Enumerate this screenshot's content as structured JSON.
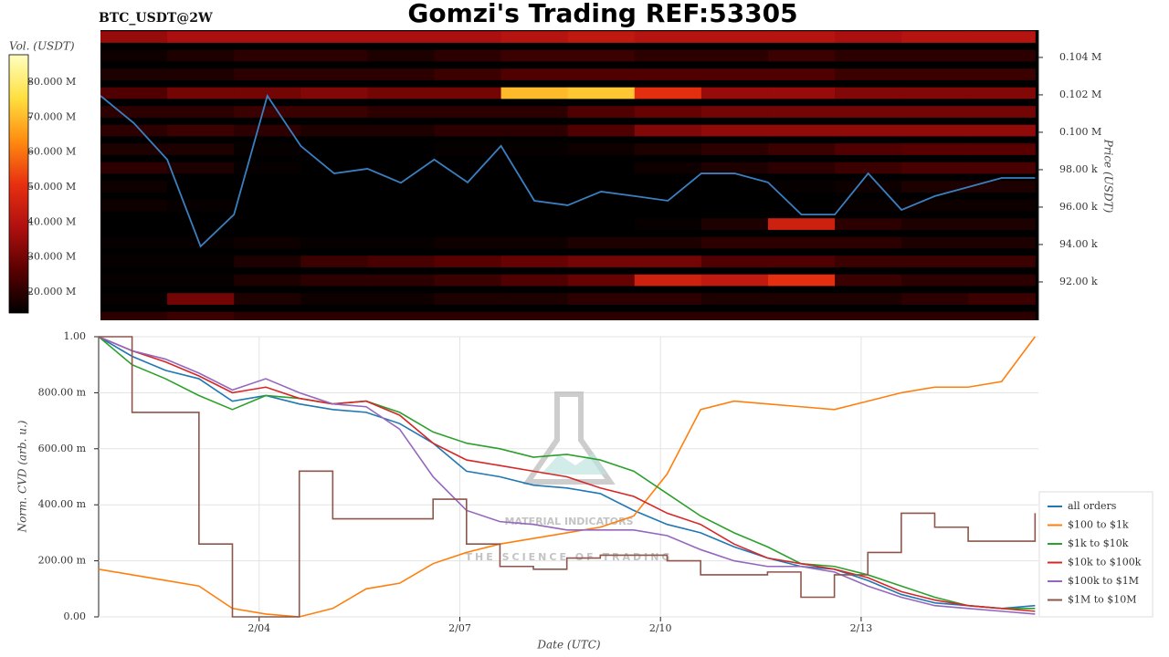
{
  "chart_data": [
    {
      "type": "heatmap",
      "title": "Gomzi's Trading REF:53305",
      "subtitle": "BTC_USDT@2W",
      "ylabel": "Price (USDT)",
      "xlim": [
        1.6,
        15.65
      ],
      "ylim": [
        89950,
        105460
      ],
      "yticks": [
        {
          "value": 92000,
          "label": "92.00 k"
        },
        {
          "value": 94000,
          "label": "94.00 k"
        },
        {
          "value": 96000,
          "label": "96.00 k"
        },
        {
          "value": 98000,
          "label": "98.00 k"
        },
        {
          "value": 100000,
          "label": "0.100 M"
        },
        {
          "value": 102000,
          "label": "0.102 M"
        },
        {
          "value": 104000,
          "label": "0.104 M"
        }
      ],
      "x": [
        1.6,
        2.1,
        2.6,
        3.1,
        3.6,
        4.1,
        4.6,
        5.1,
        5.6,
        6.1,
        6.6,
        7.1,
        7.6,
        8.1,
        8.6,
        9.1,
        9.6,
        10.1,
        10.6,
        11.1,
        11.6,
        12.1,
        12.6,
        13.1,
        13.6,
        14.1,
        14.6,
        15.1,
        15.6
      ],
      "series": [
        {
          "color": "#3a7fc0",
          "values": [
            101950,
            100490,
            98540,
            93900,
            95600,
            101950,
            99270,
            97800,
            98050,
            97300,
            98540,
            97320,
            99270,
            96340,
            96100,
            96830,
            96590,
            96340,
            97800,
            97800,
            97320,
            95600,
            95600,
            97800,
            95850,
            96590,
            97070,
            97560,
            97560
          ]
        }
      ],
      "heatmap": {
        "x_edges": [
          1.6,
          2.6,
          3.6,
          4.6,
          5.6,
          6.6,
          7.6,
          8.6,
          9.6,
          10.6,
          11.6,
          12.6,
          13.6,
          14.6,
          15.6
        ],
        "y": [
          105000,
          104000,
          103000,
          102000,
          101000,
          100000,
          99000,
          98000,
          97000,
          96000,
          95000,
          94000,
          93000,
          92000,
          91000,
          90000
        ],
        "values": [
          [
            35000000.0,
            38000000.0,
            38000000.0,
            38000000.0,
            38000000.0,
            38000000.0,
            40000000.0,
            42000000.0,
            40000000.0,
            40000000.0,
            40000000.0,
            38000000.0,
            40000000.0,
            40000000.0
          ],
          [
            16000000.0,
            18000000.0,
            20000000.0,
            20000000.0,
            18000000.0,
            20000000.0,
            22000000.0,
            22000000.0,
            20000000.0,
            20000000.0,
            22000000.0,
            20000000.0,
            20000000.0,
            20000000.0
          ],
          [
            18000000.0,
            18000000.0,
            20000000.0,
            20000000.0,
            20000000.0,
            22000000.0,
            25000000.0,
            25000000.0,
            25000000.0,
            25000000.0,
            25000000.0,
            22000000.0,
            22000000.0,
            22000000.0
          ],
          [
            25000000.0,
            30000000.0,
            30000000.0,
            32000000.0,
            30000000.0,
            30000000.0,
            70000000.0,
            72000000.0,
            50000000.0,
            35000000.0,
            35000000.0,
            32000000.0,
            32000000.0,
            32000000.0
          ],
          [
            20000000.0,
            20000000.0,
            22000000.0,
            22000000.0,
            20000000.0,
            20000000.0,
            20000000.0,
            25000000.0,
            28000000.0,
            30000000.0,
            30000000.0,
            30000000.0,
            30000000.0,
            30000000.0
          ],
          [
            20000000.0,
            22000000.0,
            20000000.0,
            18000000.0,
            18000000.0,
            20000000.0,
            20000000.0,
            25000000.0,
            32000000.0,
            34000000.0,
            34000000.0,
            34000000.0,
            34000000.0,
            34000000.0
          ],
          [
            18000000.0,
            18000000.0,
            15000000.0,
            12000000.0,
            14000000.0,
            15000000.0,
            15000000.0,
            16000000.0,
            18000000.0,
            20000000.0,
            22000000.0,
            25000000.0,
            26000000.0,
            26000000.0
          ],
          [
            20000000.0,
            18000000.0,
            15000000.0,
            12000000.0,
            12000000.0,
            14000000.0,
            14000000.0,
            14000000.0,
            16000000.0,
            18000000.0,
            20000000.0,
            22000000.0,
            24000000.0,
            24000000.0
          ],
          [
            16000000.0,
            14000000.0,
            13000000.0,
            13000000.0,
            13000000.0,
            13000000.0,
            13000000.0,
            13000000.0,
            13000000.0,
            14000000.0,
            15000000.0,
            16000000.0,
            18000000.0,
            18000000.0
          ],
          [
            16000000.0,
            15000000.0,
            14000000.0,
            13000000.0,
            13000000.0,
            13000000.0,
            13000000.0,
            13000000.0,
            13000000.0,
            13000000.0,
            14000000.0,
            15000000.0,
            16000000.0,
            16000000.0
          ],
          [
            14000000.0,
            14000000.0,
            14000000.0,
            13000000.0,
            13000000.0,
            13000000.0,
            14000000.0,
            14000000.0,
            15000000.0,
            18000000.0,
            45000000.0,
            20000000.0,
            18000000.0,
            18000000.0
          ],
          [
            15000000.0,
            15000000.0,
            16000000.0,
            15000000.0,
            15000000.0,
            16000000.0,
            16000000.0,
            18000000.0,
            18000000.0,
            20000000.0,
            20000000.0,
            20000000.0,
            18000000.0,
            18000000.0
          ],
          [
            15000000.0,
            15000000.0,
            18000000.0,
            22000000.0,
            24000000.0,
            26000000.0,
            28000000.0,
            30000000.0,
            30000000.0,
            25000000.0,
            25000000.0,
            22000000.0,
            22000000.0,
            22000000.0
          ],
          [
            15000000.0,
            15000000.0,
            18000000.0,
            20000000.0,
            20000000.0,
            22000000.0,
            25000000.0,
            28000000.0,
            45000000.0,
            42000000.0,
            50000000.0,
            22000000.0,
            20000000.0,
            20000000.0
          ],
          [
            15000000.0,
            30000000.0,
            18000000.0,
            16000000.0,
            16000000.0,
            18000000.0,
            18000000.0,
            20000000.0,
            20000000.0,
            18000000.0,
            18000000.0,
            18000000.0,
            20000000.0,
            22000000.0
          ],
          [
            20000000.0,
            22000000.0,
            20000000.0,
            20000000.0,
            20000000.0,
            20000000.0,
            20000000.0,
            20000000.0,
            20000000.0,
            20000000.0,
            20000000.0,
            20000000.0,
            20000000.0,
            20000000.0
          ]
        ]
      },
      "colorbar": {
        "label": "Vol. (USDT)",
        "lim": [
          14000000,
          87800000
        ],
        "ticks": [
          {
            "value": 20000000,
            "label": "20.000 M"
          },
          {
            "value": 30000000,
            "label": "30.000 M"
          },
          {
            "value": 40000000,
            "label": "40.000 M"
          },
          {
            "value": 50000000,
            "label": "50.000 M"
          },
          {
            "value": 60000000,
            "label": "60.000 M"
          },
          {
            "value": 70000000,
            "label": "70.000 M"
          },
          {
            "value": 80000000,
            "label": "80.000 M"
          }
        ],
        "colors": [
          "#000000",
          "#5a0000",
          "#b01010",
          "#e83010",
          "#ff8c10",
          "#ffe040",
          "#ffffc0"
        ]
      }
    },
    {
      "type": "line",
      "xlabel": "Date (UTC)",
      "ylabel": "Norm. CVD (arb. u.)",
      "grid": true,
      "legend": "lower right",
      "annotations": [
        "MATERIAL INDICATORS",
        "THE SCIENCE OF TRADING"
      ],
      "xlim": [
        1.6,
        15.65
      ],
      "ylim": [
        0,
        1
      ],
      "xticks": [
        {
          "value": 4,
          "label": "2/04"
        },
        {
          "value": 7,
          "label": "2/07"
        },
        {
          "value": 10,
          "label": "2/10"
        },
        {
          "value": 13,
          "label": "2/13"
        }
      ],
      "yticks": [
        {
          "value": 0,
          "label": "0.00"
        },
        {
          "value": 0.2,
          "label": "200.00 m"
        },
        {
          "value": 0.4,
          "label": "400.00 m"
        },
        {
          "value": 0.6,
          "label": "600.00 m"
        },
        {
          "value": 0.8,
          "label": "800.00 m"
        },
        {
          "value": 1,
          "label": "1.00"
        }
      ],
      "x": [
        1.6,
        2.1,
        2.6,
        3.1,
        3.6,
        4.1,
        4.6,
        5.1,
        5.6,
        6.1,
        6.6,
        7.1,
        7.6,
        8.1,
        8.6,
        9.1,
        9.6,
        10.1,
        10.6,
        11.1,
        11.6,
        12.1,
        12.6,
        13.1,
        13.6,
        14.1,
        14.6,
        15.1,
        15.6
      ],
      "series": [
        {
          "name": "all orders",
          "color": "#1f77b4",
          "values": [
            1.0,
            0.93,
            0.88,
            0.85,
            0.77,
            0.79,
            0.76,
            0.74,
            0.73,
            0.69,
            0.62,
            0.52,
            0.5,
            0.47,
            0.46,
            0.44,
            0.38,
            0.33,
            0.3,
            0.25,
            0.21,
            0.18,
            0.17,
            0.13,
            0.08,
            0.05,
            0.04,
            0.03,
            0.04
          ]
        },
        {
          "name": "$100 to $1k",
          "color": "#ff7f0e",
          "values": [
            0.17,
            0.15,
            0.13,
            0.11,
            0.03,
            0.01,
            0.0,
            0.03,
            0.1,
            0.12,
            0.19,
            0.23,
            0.26,
            0.28,
            0.3,
            0.32,
            0.36,
            0.51,
            0.74,
            0.77,
            0.76,
            0.75,
            0.74,
            0.77,
            0.8,
            0.82,
            0.82,
            0.84,
            1.0
          ]
        },
        {
          "name": "$1k to $10k",
          "color": "#2ca02c",
          "values": [
            1.0,
            0.9,
            0.85,
            0.79,
            0.74,
            0.79,
            0.78,
            0.76,
            0.77,
            0.73,
            0.66,
            0.62,
            0.6,
            0.57,
            0.58,
            0.56,
            0.52,
            0.44,
            0.36,
            0.3,
            0.25,
            0.19,
            0.18,
            0.15,
            0.11,
            0.07,
            0.04,
            0.03,
            0.03
          ]
        },
        {
          "name": "$10k to $100k",
          "color": "#d62728",
          "values": [
            1.0,
            0.95,
            0.91,
            0.86,
            0.8,
            0.82,
            0.78,
            0.76,
            0.77,
            0.72,
            0.62,
            0.56,
            0.54,
            0.52,
            0.5,
            0.46,
            0.43,
            0.37,
            0.33,
            0.26,
            0.21,
            0.19,
            0.17,
            0.14,
            0.09,
            0.06,
            0.04,
            0.03,
            0.02
          ]
        },
        {
          "name": "$100k to $1M",
          "color": "#9467bd",
          "values": [
            1.0,
            0.95,
            0.92,
            0.87,
            0.81,
            0.85,
            0.8,
            0.76,
            0.75,
            0.67,
            0.5,
            0.38,
            0.34,
            0.33,
            0.31,
            0.31,
            0.31,
            0.29,
            0.24,
            0.2,
            0.18,
            0.18,
            0.16,
            0.11,
            0.07,
            0.04,
            0.03,
            0.02,
            0.01
          ]
        },
        {
          "name": "$1M to $10M",
          "color": "#8c564b",
          "values": [
            1.0,
            0.73,
            0.73,
            0.26,
            0.0,
            0.0,
            0.52,
            0.35,
            0.35,
            0.35,
            0.42,
            0.26,
            0.18,
            0.17,
            0.21,
            0.22,
            0.22,
            0.2,
            0.15,
            0.15,
            0.16,
            0.07,
            0.15,
            0.23,
            0.37,
            0.32,
            0.27,
            0.27,
            0.37
          ]
        }
      ]
    }
  ]
}
